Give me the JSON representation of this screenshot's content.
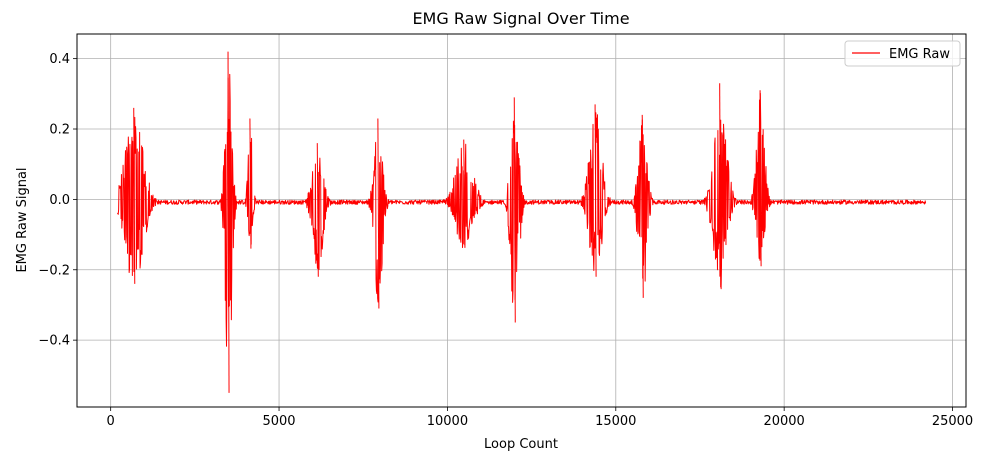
{
  "chart_data": {
    "type": "line",
    "title": "EMG Raw Signal Over Time",
    "xlabel": "Loop Count",
    "ylabel": "EMG Raw Signal",
    "xlim": [
      -1000,
      25400
    ],
    "ylim": [
      -0.59,
      0.47
    ],
    "xticks": [
      0,
      5000,
      10000,
      15000,
      20000,
      25000
    ],
    "xtick_labels": [
      "0",
      "5000",
      "10000",
      "15000",
      "20000",
      "25000"
    ],
    "yticks": [
      -0.4,
      -0.2,
      0.0,
      0.2,
      0.4
    ],
    "ytick_labels": [
      "−0.4",
      "−0.2",
      "0.0",
      "0.2",
      "0.4"
    ],
    "grid": true,
    "legend": {
      "placement": "top-right",
      "entries": [
        "EMG Raw"
      ]
    },
    "series": [
      {
        "name": "EMG Raw",
        "color": "#ff0000",
        "x_start": 200,
        "x_end": 24200,
        "baseline": -0.008,
        "noise": 0.006,
        "bursts": [
          {
            "center": 700,
            "width": 450,
            "max": 0.26,
            "min": -0.24
          },
          {
            "center": 3500,
            "width": 160,
            "max": 0.42,
            "min": -0.55
          },
          {
            "center": 4150,
            "width": 110,
            "max": 0.23,
            "min": -0.14
          },
          {
            "center": 6150,
            "width": 260,
            "max": 0.16,
            "min": -0.22
          },
          {
            "center": 7950,
            "width": 200,
            "max": 0.23,
            "min": -0.31
          },
          {
            "center": 10500,
            "width": 420,
            "max": 0.17,
            "min": -0.13
          },
          {
            "center": 12000,
            "width": 200,
            "max": 0.29,
            "min": -0.35
          },
          {
            "center": 14400,
            "width": 300,
            "max": 0.27,
            "min": -0.22
          },
          {
            "center": 15800,
            "width": 210,
            "max": 0.24,
            "min": -0.28
          },
          {
            "center": 18100,
            "width": 320,
            "max": 0.33,
            "min": -0.25
          },
          {
            "center": 19300,
            "width": 200,
            "max": 0.31,
            "min": -0.19
          }
        ]
      }
    ]
  }
}
